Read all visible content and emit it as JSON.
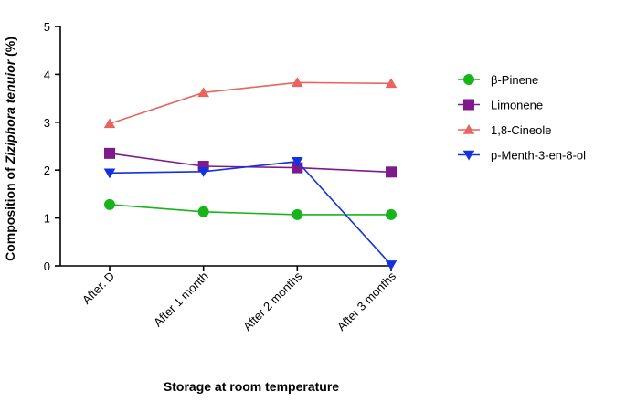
{
  "chart_data": {
    "type": "line",
    "categories": [
      "After. D",
      "After 1 month",
      "After 2 months",
      "After 3 months"
    ],
    "xlabel": "Storage at room temperature",
    "ylabel_parts": [
      "Composition of ",
      "Ziziphora tenuior",
      " (%)"
    ],
    "ylim": [
      0,
      5
    ],
    "yticks": [
      0,
      1,
      2,
      3,
      4,
      5
    ],
    "grid": false,
    "legend_position": "right",
    "series": [
      {
        "name": "β-Pinene",
        "values": [
          1.28,
          1.13,
          1.07,
          1.07
        ],
        "color": "#17b51a",
        "marker": "circle"
      },
      {
        "name": "Limonene",
        "values": [
          2.35,
          2.08,
          2.05,
          1.96
        ],
        "color": "#7f1a8c",
        "marker": "square"
      },
      {
        "name": "1,8-Cineole",
        "values": [
          2.97,
          3.62,
          3.83,
          3.81
        ],
        "color": "#e8645e",
        "marker": "triangle-up"
      },
      {
        "name": "p-Menth-3-en-8-ol",
        "values": [
          1.94,
          1.97,
          2.18,
          0.02
        ],
        "color": "#1431e0",
        "marker": "triangle-down"
      }
    ]
  }
}
